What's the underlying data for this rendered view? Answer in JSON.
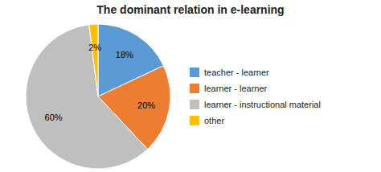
{
  "chart_data": {
    "type": "pie",
    "title": "The dominant relation in e-learning",
    "categories": [
      "teacher - learner",
      "learner - learner",
      "learner - instructional material",
      "other"
    ],
    "values": [
      18,
      20,
      60,
      2
    ],
    "value_labels": [
      "18%",
      "20%",
      "60%",
      "2%"
    ],
    "colors": [
      "#5b9bd5",
      "#ed7d31",
      "#bfbfbf",
      "#ffc000"
    ],
    "data_labels": true,
    "legend": "right"
  }
}
